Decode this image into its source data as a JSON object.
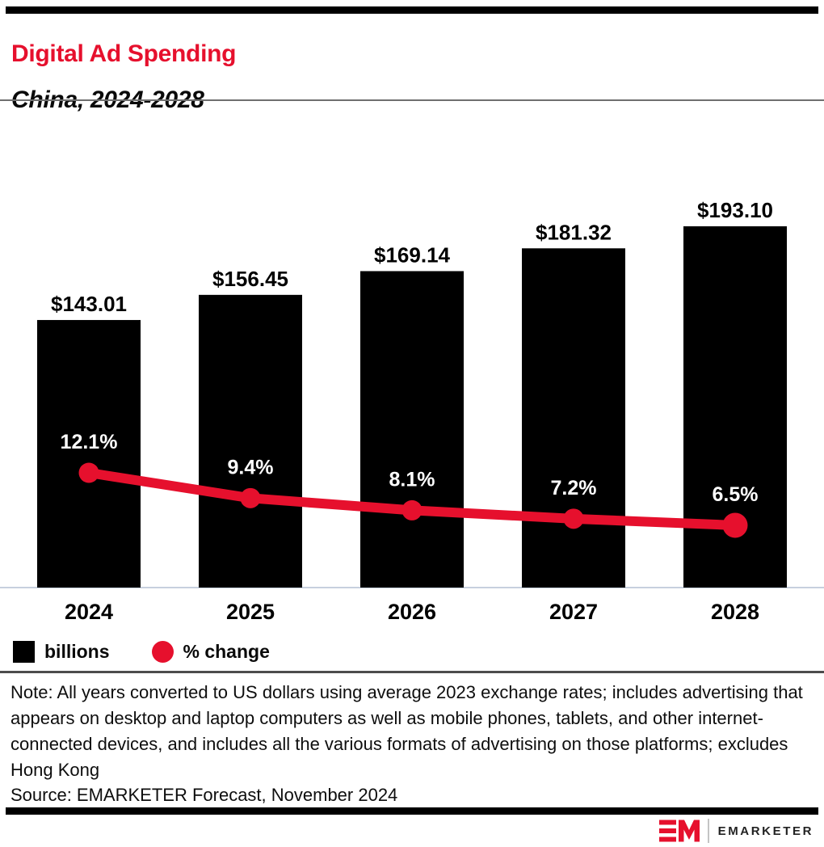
{
  "header": {
    "title": "Digital Ad Spending",
    "subtitle": "China, 2024-2028"
  },
  "colors": {
    "accent_red": "#e6102d",
    "bar_black": "#000000",
    "axis_line": "#c7d0de",
    "pct_label_white": "#ffffff"
  },
  "chart_data": {
    "type": "bar",
    "subtype": "bar-line-combo",
    "title": "Digital Ad Spending",
    "subtitle": "China, 2024-2028",
    "categories": [
      "2024",
      "2025",
      "2026",
      "2027",
      "2028"
    ],
    "series": [
      {
        "name": "billions",
        "type": "bar",
        "color": "#000000",
        "values": [
          143.01,
          156.45,
          169.14,
          181.32,
          193.1
        ],
        "labels": [
          "$143.01",
          "$156.45",
          "$169.14",
          "$181.32",
          "$193.10"
        ]
      },
      {
        "name": "% change",
        "type": "line",
        "color": "#e6102d",
        "values": [
          12.1,
          9.4,
          8.1,
          7.2,
          6.5
        ],
        "labels": [
          "12.1%",
          "9.4%",
          "8.1%",
          "7.2%",
          "6.5%"
        ]
      }
    ],
    "bar_axis_min": 0,
    "grid": false,
    "legend_position": "bottom-left",
    "xlabel": "",
    "ylabel": ""
  },
  "legend": {
    "bars_label": "billions",
    "line_label": "% change"
  },
  "footer": {
    "note": "Note: All years converted to US dollars using average 2023 exchange rates; includes advertising that appears on desktop and laptop computers as well as mobile phones, tablets, and other internet-connected devices, and includes all the various formats of advertising on those platforms; excludes Hong Kong",
    "source": "Source: EMARKETER Forecast, November 2024",
    "brand": "EMARKETER"
  }
}
